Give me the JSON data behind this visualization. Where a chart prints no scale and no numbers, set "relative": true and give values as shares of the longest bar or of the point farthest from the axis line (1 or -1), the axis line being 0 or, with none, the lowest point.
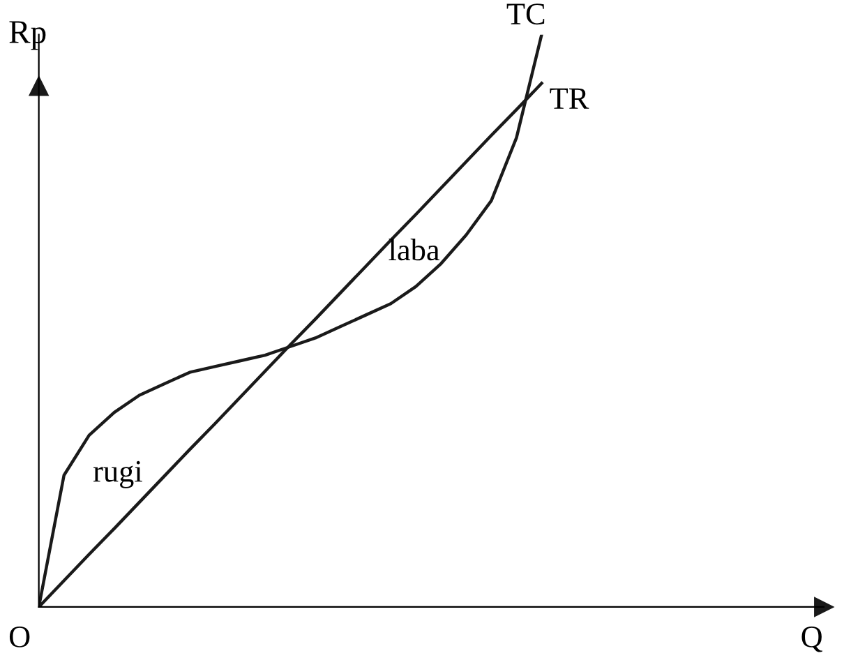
{
  "chart_data": {
    "type": "line",
    "relative": true,
    "ylabel": "Rp",
    "categories": [
      null,
      null,
      null,
      null,
      null,
      null,
      null,
      null,
      null,
      null,
      null,
      null,
      null,
      null,
      null,
      null,
      null,
      null,
      null,
      null,
      null
    ],
    "series": [
      {
        "name": "TC",
        "color": "#1a1a1a",
        "values": [
          0,
          0.23,
          0.3,
          0.34,
          0.37,
          0.39,
          0.41,
          0.42,
          0.43,
          0.44,
          0.455,
          0.47,
          0.49,
          0.51,
          0.53,
          0.56,
          0.6,
          0.65,
          0.71,
          0.82,
          1.0
        ]
      },
      {
        "name": "TR",
        "color": "#1a1a1a",
        "values": [
          0,
          0.046,
          0.092,
          0.137,
          0.183,
          0.229,
          0.275,
          0.32,
          0.366,
          0.412,
          0.458,
          0.503,
          0.549,
          0.595,
          0.641,
          0.686,
          0.732,
          0.778,
          0.824,
          0.869,
          0.915
        ]
      }
    ],
    "annotations": [
      "O",
      "rugi",
      "laba",
      "Q"
    ],
    "legend": false,
    "marker": "none",
    "line_style": "solid"
  }
}
